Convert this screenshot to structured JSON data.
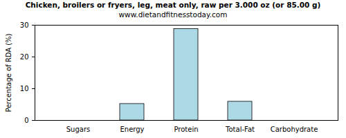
{
  "chart_data": {
    "type": "bar",
    "title": "Chicken, broilers or fryers, leg, meat only, raw per 3.000 oz (or 85.00 g)",
    "subtitle": "www.dietandfitnesstoday.com",
    "y_label": "Percentage of RDA (%)",
    "categories": [
      "Sugars",
      "Energy",
      "Protein",
      "Total-Fat",
      "Carbohydrate"
    ],
    "values": [
      0,
      5.2,
      28.8,
      5.9,
      0
    ],
    "color": "#add8e6",
    "ylim": [
      0,
      30
    ],
    "yticks": [
      0,
      10,
      20,
      30
    ],
    "grid": false
  }
}
